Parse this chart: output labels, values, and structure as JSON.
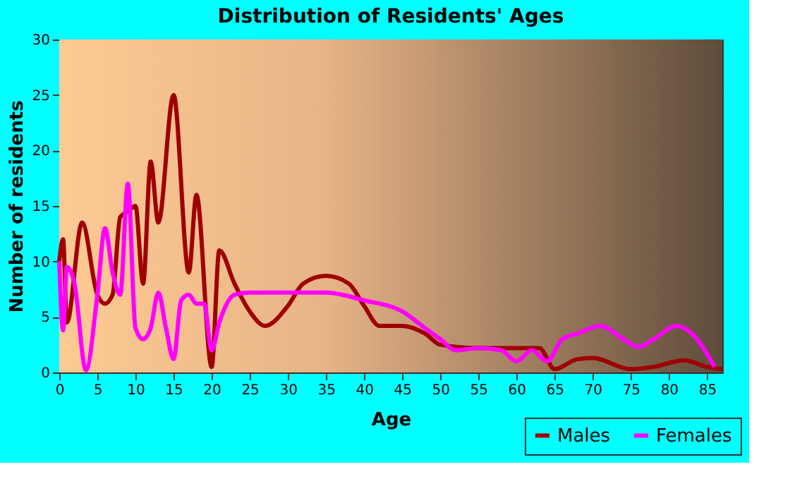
{
  "chart_data": {
    "type": "line",
    "title": "Distribution of Residents' Ages",
    "xlabel": "Age",
    "ylabel": "Number of residents",
    "xlim": [
      0,
      87
    ],
    "xticks": [
      0,
      5,
      10,
      15,
      20,
      25,
      30,
      35,
      40,
      45,
      50,
      55,
      60,
      65,
      70,
      75,
      80,
      85
    ],
    "ylim": [
      0,
      30
    ],
    "yticks": [
      0,
      5,
      10,
      15,
      20,
      25,
      30
    ],
    "grid": true,
    "legend": "bottom right",
    "marker": "none",
    "line_style": "solid",
    "series": [
      {
        "name": "Males",
        "color": "#a00000",
        "x": [
          0,
          0.5,
          1,
          3,
          5,
          6,
          7,
          8,
          9,
          10,
          11,
          12,
          13,
          15,
          17,
          18,
          20,
          21,
          23,
          25,
          27,
          30,
          32,
          35,
          38,
          40,
          42,
          45,
          48,
          50,
          55,
          58,
          61,
          63,
          65,
          68,
          70,
          75,
          78,
          82,
          85,
          87
        ],
        "values": [
          10,
          12,
          4.5,
          13.5,
          7,
          6.2,
          7,
          14,
          14.5,
          15,
          8,
          19,
          13.5,
          25,
          9,
          16,
          0.5,
          11,
          8,
          5.5,
          4.2,
          6,
          8,
          8.7,
          8,
          6,
          4.2,
          4.2,
          3.5,
          2.5,
          2.2,
          2.2,
          2.2,
          2.2,
          0.3,
          1.2,
          1.3,
          0.3,
          0.5,
          1.1,
          0.5,
          0.3
        ]
      },
      {
        "name": "Females",
        "color": "#ff00ff",
        "x": [
          0,
          0.5,
          1,
          2,
          3.5,
          5,
          6,
          7,
          8,
          9,
          10,
          11,
          12,
          13,
          14,
          15,
          16,
          17,
          18,
          19,
          20,
          21,
          23,
          25,
          30,
          35,
          40,
          45,
          48,
          50,
          52,
          55,
          58,
          60,
          62,
          64,
          66,
          68,
          71,
          74,
          76,
          78,
          81,
          83,
          86
        ],
        "values": [
          10,
          3.8,
          9.5,
          8,
          0.2,
          7,
          13,
          9,
          7,
          17,
          4,
          3,
          4,
          7.2,
          4,
          1.2,
          6.5,
          7,
          6.2,
          6.2,
          2,
          4.5,
          7,
          7.2,
          7.2,
          7.2,
          6.5,
          5.5,
          4,
          3,
          2,
          2.2,
          2,
          1,
          2,
          1,
          3,
          3.5,
          4.2,
          3,
          2.3,
          3,
          4.2,
          3.5,
          0.5
        ]
      }
    ]
  }
}
